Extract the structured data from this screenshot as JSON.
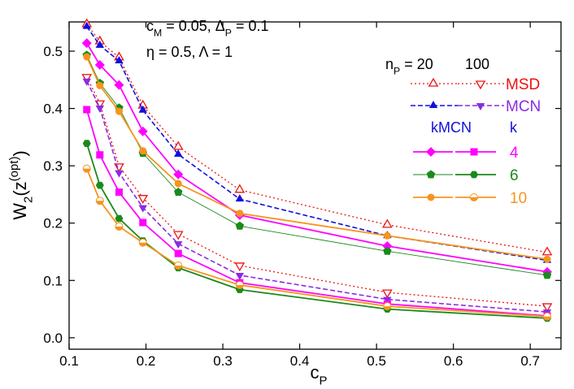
{
  "chart_data": {
    "type": "line",
    "annotations": [
      [
        {
          "text": "c"
        },
        {
          "text": "M",
          "shift": "sub"
        },
        {
          "text": " = 0.05, Δ"
        },
        {
          "text": "P",
          "shift": "sub"
        },
        {
          "text": " = 0.1"
        }
      ],
      [
        {
          "text": "η = 0.5, Λ = 1"
        }
      ]
    ],
    "xlabel": [
      {
        "text": "c"
      },
      {
        "text": "P",
        "shift": "sub"
      }
    ],
    "ylabel": [
      {
        "text": "W"
      },
      {
        "text": "2",
        "shift": "sub"
      },
      {
        "text": "(z"
      },
      {
        "text": "(opt)",
        "shift": "sup"
      },
      {
        "text": ")"
      }
    ],
    "xlim": [
      0.1,
      0.74
    ],
    "ylim": [
      -0.02,
      0.551
    ],
    "xticks": [
      0.1,
      0.2,
      0.3,
      0.4,
      0.5,
      0.6,
      0.7
    ],
    "yticks": [
      {
        "value": 0,
        "label": "0.0"
      },
      0.1,
      0.2,
      0.3,
      0.4,
      0.5
    ],
    "x": [
      0.123,
      0.14,
      0.165,
      0.196,
      0.242,
      0.322,
      0.514,
      0.722
    ],
    "legend": {
      "header": [
        {
          "text": "n"
        },
        {
          "text": "P",
          "shift": "sub"
        },
        {
          "text": " = 20"
        }
      ],
      "header2": "100",
      "group_header": "kMCN",
      "group_header2": "k",
      "group_header_color": "#1010e0"
    },
    "groups": [
      {
        "name": "MSD",
        "color": "#ee1111",
        "dash": "2,3",
        "width": 1.3,
        "series": [
          {
            "color": "#ee1111",
            "marker": "tri-up-open",
            "values": [
              0.547,
              0.517,
              0.489,
              0.405,
              0.333,
              0.258,
              0.197,
              0.149
            ]
          },
          {
            "color": "#ee1111",
            "marker": "tri-down-open",
            "values": [
              0.455,
              0.409,
              0.299,
              0.244,
              0.181,
              0.126,
              0.079,
              0.055
            ]
          }
        ]
      },
      {
        "name": "MCN",
        "color": "#8a2be2",
        "dash": "6,3",
        "width": 1.6,
        "series": [
          {
            "color": "#1010e0",
            "marker": "tri-up",
            "values": [
              0.543,
              0.51,
              0.483,
              0.397,
              0.32,
              0.242,
              0.178,
              0.135
            ]
          },
          {
            "color": "#8a2be2",
            "marker": "tri-down",
            "values": [
              0.448,
              0.401,
              0.288,
              0.227,
              0.164,
              0.109,
              0.067,
              0.045
            ]
          }
        ]
      },
      {
        "name": "4",
        "color": "#ff00ff",
        "dash": "none",
        "width": 1.8,
        "series": [
          {
            "color": "#ff00ff",
            "marker": "diamond",
            "values": [
              0.514,
              0.476,
              0.441,
              0.36,
              0.285,
              0.214,
              0.16,
              0.115
            ]
          },
          {
            "color": "#ff00ff",
            "marker": "square",
            "values": [
              0.398,
              0.319,
              0.254,
              0.201,
              0.147,
              0.096,
              0.059,
              0.038
            ]
          }
        ]
      },
      {
        "name": "6",
        "color": "#1a8a1a",
        "dash": "none",
        "width": 1.8,
        "series": [
          {
            "color": "#1a8a1a",
            "marker": "pentagon",
            "width": 0.9,
            "values": [
              0.493,
              0.444,
              0.401,
              0.322,
              0.254,
              0.195,
              0.151,
              0.109
            ]
          },
          {
            "color": "#1a8a1a",
            "marker": "hexagon",
            "values": [
              0.339,
              0.266,
              0.208,
              0.169,
              0.122,
              0.084,
              0.05,
              0.034
            ]
          }
        ]
      },
      {
        "name": "10",
        "color": "#f7941d",
        "dash": "none",
        "width": 1.8,
        "series": [
          {
            "color": "#f7941d",
            "marker": "circle",
            "values": [
              0.49,
              0.44,
              0.395,
              0.326,
              0.269,
              0.217,
              0.178,
              0.137
            ]
          },
          {
            "color": "#f7941d",
            "marker": "half-circle",
            "values": [
              0.295,
              0.239,
              0.194,
              0.166,
              0.126,
              0.092,
              0.055,
              0.037
            ]
          }
        ]
      }
    ]
  }
}
